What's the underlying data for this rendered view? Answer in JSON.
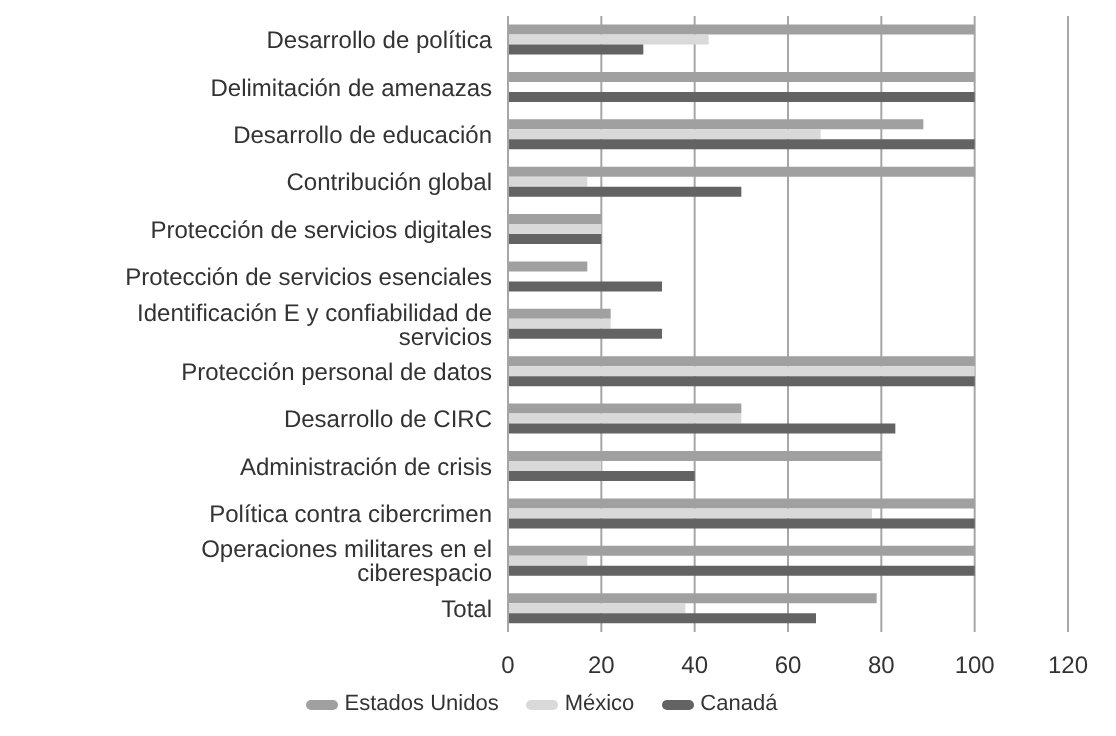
{
  "chart_data": {
    "type": "bar",
    "orientation": "horizontal",
    "categories": [
      "Desarrollo de política",
      "Delimitación de amenazas",
      "Desarrollo de educación",
      "Contribución global",
      "Protección de servicios digitales",
      "Protección de servicios esenciales",
      "Identificación E y confiabilidad de servicios",
      "Protección personal de datos",
      "Desarrollo de CIRC",
      "Administración de crisis",
      "Política contra cibercrimen",
      "Operaciones militares en el ciberespacio",
      "Total"
    ],
    "series": [
      {
        "name": "Estados Unidos",
        "color": "#a0a0a0",
        "values": [
          100,
          100,
          89,
          100,
          20,
          17,
          22,
          100,
          50,
          80,
          100,
          100,
          79
        ]
      },
      {
        "name": "México",
        "color": "#d9d9d9",
        "values": [
          43,
          0,
          67,
          17,
          20,
          0,
          22,
          100,
          50,
          20,
          78,
          17,
          38
        ]
      },
      {
        "name": "Canadá",
        "color": "#636363",
        "values": [
          29,
          100,
          100,
          50,
          20,
          33,
          33,
          100,
          83,
          40,
          100,
          100,
          66
        ]
      }
    ],
    "xlim": [
      0,
      120
    ],
    "xticks": [
      0,
      20,
      40,
      60,
      80,
      100,
      120
    ],
    "grid": "x",
    "legend": "bottom"
  }
}
